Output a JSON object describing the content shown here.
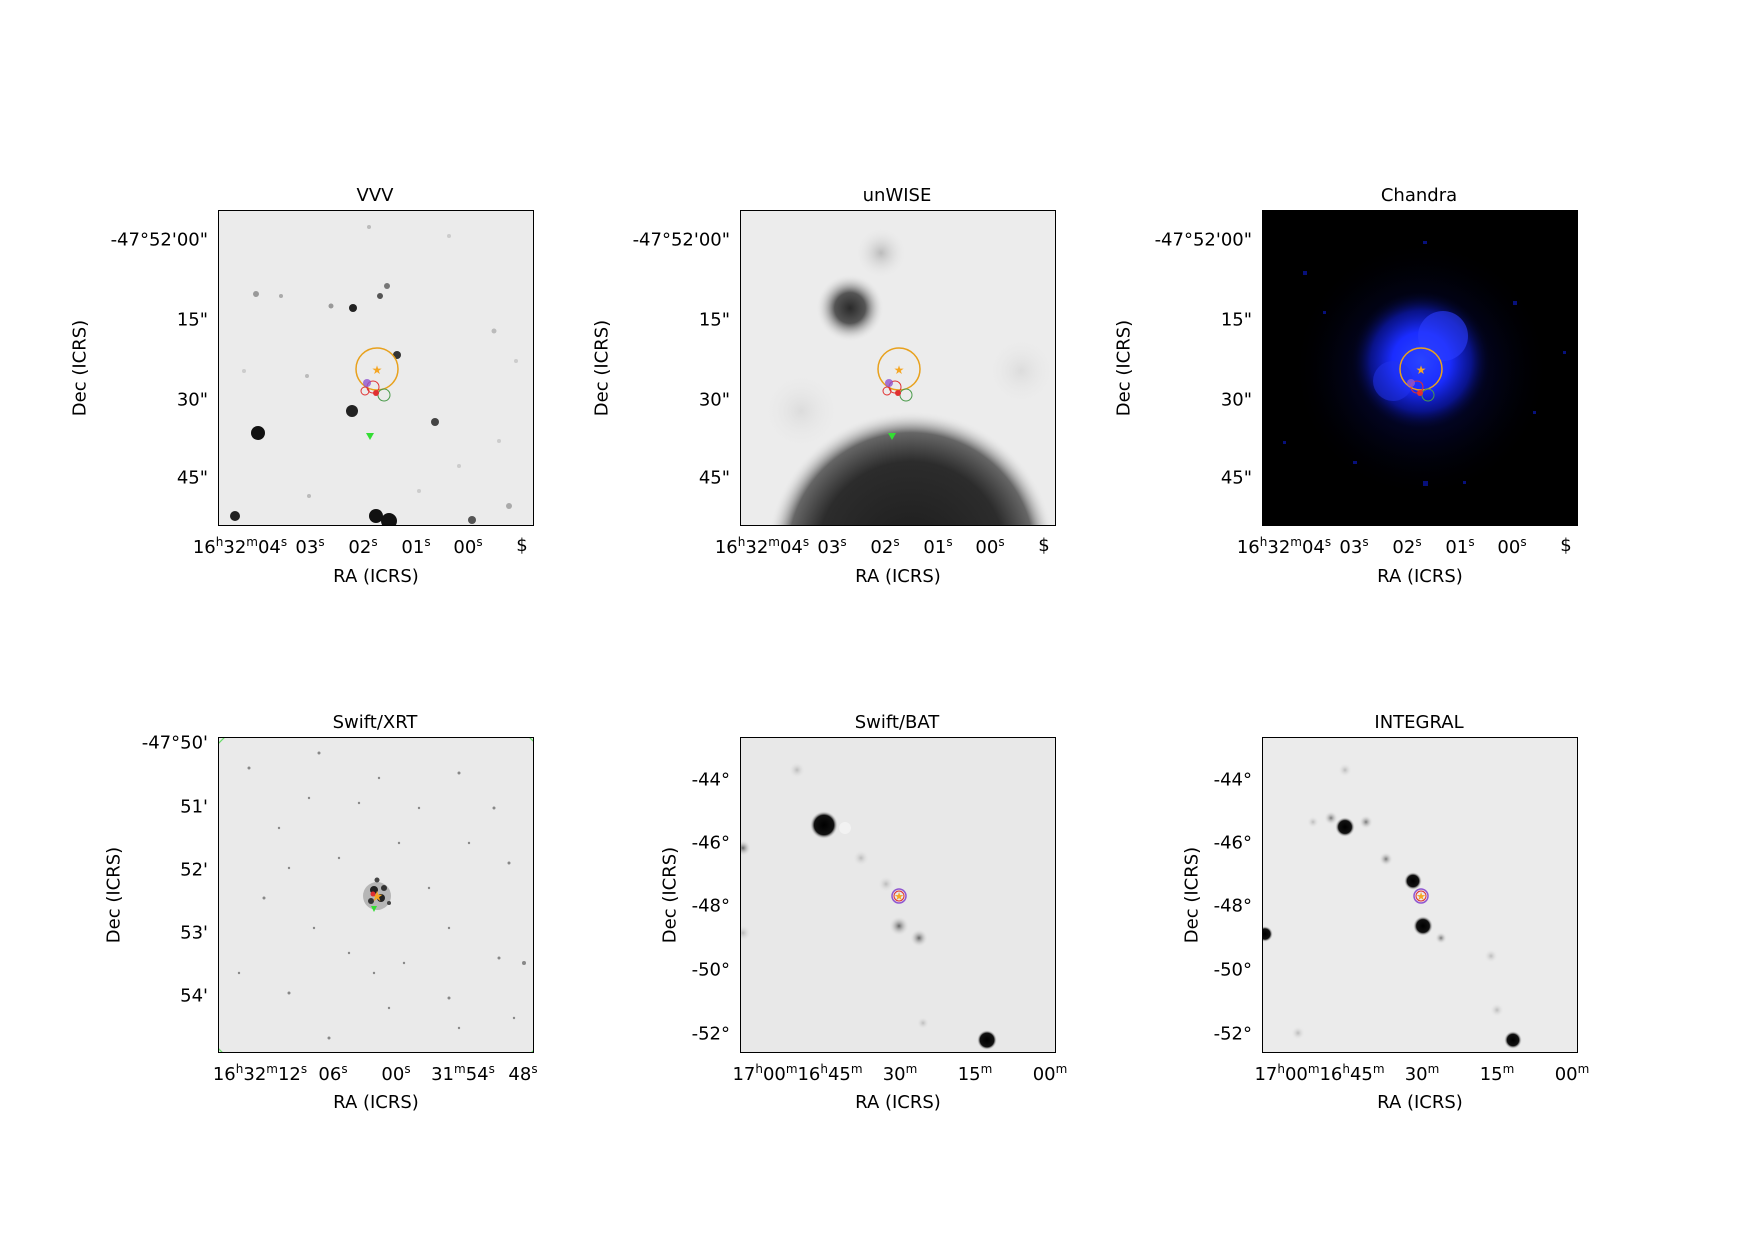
{
  "panels": [
    {
      "title": "VVV",
      "xlabel": "RA (ICRS)",
      "ylabel": "Dec (ICRS)",
      "yticks": [
        "-47°52'00\"",
        "15\"",
        "30\"",
        "45\""
      ],
      "xticks": [
        "16h32m04s",
        "03s",
        "02s",
        "01s",
        "00s",
        "$"
      ],
      "background": "#ebebeb"
    },
    {
      "title": "unWISE",
      "xlabel": "RA (ICRS)",
      "ylabel": "Dec (ICRS)",
      "yticks": [
        "-47°52'00\"",
        "15\"",
        "30\"",
        "45\""
      ],
      "xticks": [
        "16h32m04s",
        "03s",
        "02s",
        "01s",
        "00s",
        "$"
      ],
      "background": "#ececec"
    },
    {
      "title": "Chandra",
      "xlabel": "RA (ICRS)",
      "ylabel": "Dec (ICRS)",
      "yticks": [
        "-47°52'00\"",
        "15\"",
        "30\"",
        "45\""
      ],
      "xticks": [
        "16h32m04s",
        "03s",
        "02s",
        "01s",
        "00s",
        "$"
      ],
      "background": "#000000"
    },
    {
      "title": "Swift/XRT",
      "xlabel": "RA (ICRS)",
      "ylabel": "Dec (ICRS)",
      "yticks": [
        "-47°50'",
        "51'",
        "52'",
        "53'",
        "54'"
      ],
      "xticks": [
        "16h32m12s",
        "06s",
        "00s",
        "31m54s",
        "48s"
      ],
      "background": "#eaeaea"
    },
    {
      "title": "Swift/BAT",
      "xlabel": "RA (ICRS)",
      "ylabel": "Dec (ICRS)",
      "yticks": [
        "-44°",
        "-46°",
        "-48°",
        "-50°",
        "-52°"
      ],
      "xticks": [
        "17h00m",
        "16h45m",
        "30m",
        "15m",
        "00m"
      ],
      "background": "#e8e8e8"
    },
    {
      "title": "INTEGRAL",
      "xlabel": "RA (ICRS)",
      "ylabel": "Dec (ICRS)",
      "yticks": [
        "-44°",
        "-46°",
        "-48°",
        "-50°",
        "-52°"
      ],
      "xticks": [
        "17h00m",
        "16h45m",
        "30m",
        "15m",
        "00m"
      ],
      "background": "#ebebeb"
    }
  ],
  "colors": {
    "source_star": "#f5a623",
    "error_circle": "#e8a11d",
    "green_marker": "#33dd33",
    "red_circle": "#e03030",
    "purple_circle": "#9055d0",
    "chandra_emission": "#1a2cff"
  }
}
